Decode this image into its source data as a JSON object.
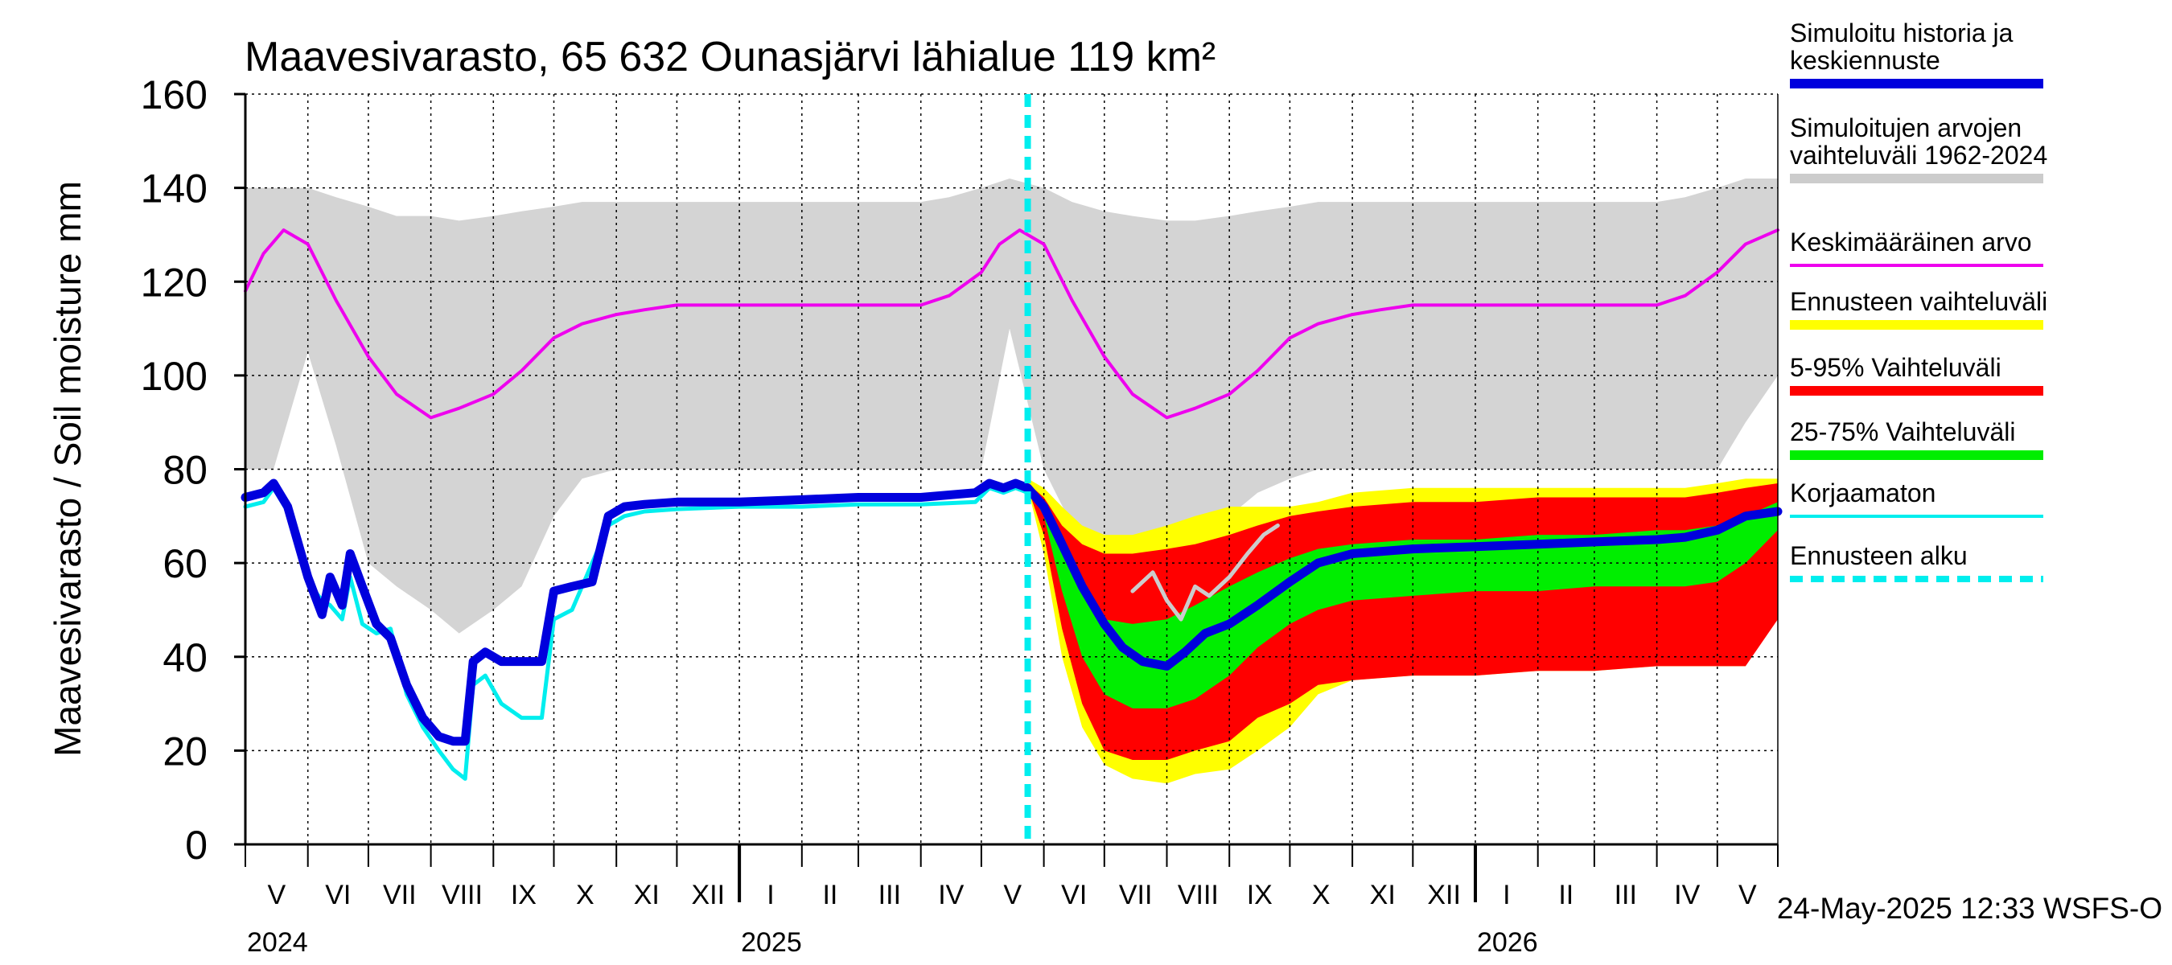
{
  "chart_data": {
    "type": "area",
    "title": "Maavesivarasto, 65 632 Ounasjärvi lähialue 119 km²",
    "ylabel": "Maavesivarasto / Soil moisture   mm",
    "xlabel": "",
    "ylim": [
      0,
      160
    ],
    "y_ticks": [
      0,
      20,
      40,
      60,
      80,
      100,
      120,
      140,
      160
    ],
    "x_range": [
      "2024-05-01",
      "2026-05-31"
    ],
    "grid": true,
    "legend_position": "right",
    "month_labels": [
      "V",
      "VI",
      "VII",
      "VIII",
      "IX",
      "X",
      "XI",
      "XII",
      "I",
      "II",
      "III",
      "IV",
      "V",
      "VI",
      "VII",
      "VIII",
      "IX",
      "X",
      "XI",
      "XII",
      "I",
      "II",
      "III",
      "IV",
      "V"
    ],
    "month_starts": [
      "2024-05-01",
      "2024-06-01",
      "2024-07-01",
      "2024-08-01",
      "2024-09-01",
      "2024-10-01",
      "2024-11-01",
      "2024-12-01",
      "2025-01-01",
      "2025-02-01",
      "2025-03-01",
      "2025-04-01",
      "2025-05-01",
      "2025-06-01",
      "2025-07-01",
      "2025-08-01",
      "2025-09-01",
      "2025-10-01",
      "2025-11-01",
      "2025-12-01",
      "2026-01-01",
      "2026-02-01",
      "2026-03-01",
      "2026-04-01",
      "2026-05-01"
    ],
    "year_labels": [
      {
        "label": "2024",
        "date": "2024-05-01"
      },
      {
        "label": "2025",
        "date": "2025-01-01"
      },
      {
        "label": "2026",
        "date": "2026-01-01"
      }
    ],
    "forecast_start": "2025-05-24",
    "timestamp": "24-May-2025 12:33 WSFS-O",
    "legend": [
      {
        "label": "Simuloitu historia ja\nkeskiennuste",
        "color": "#0000dd",
        "style": "thick"
      },
      {
        "label": "Simuloitujen arvojen\nvaihteluväli 1962-2024",
        "color": "#cccccc",
        "style": "thick"
      },
      {
        "label": "Keskimääräinen arvo",
        "color": "#ee00ee",
        "style": "thin"
      },
      {
        "label": "Ennusteen vaihteluväli",
        "color": "#ffff00",
        "style": "thick"
      },
      {
        "label": "5-95% Vaihteluväli",
        "color": "#ff0000",
        "style": "thick"
      },
      {
        "label": "25-75% Vaihteluväli",
        "color": "#00ee00",
        "style": "thick"
      },
      {
        "label": "Korjaamaton",
        "color": "#00eeee",
        "style": "thin"
      },
      {
        "label": "Ennusteen alku",
        "color": "#00eeee",
        "style": "dashed"
      }
    ],
    "series": {
      "hist_range": {
        "name": "Simuloitujen arvojen vaihteluväli 1962-2024",
        "x": [
          "2024-05-01",
          "2024-05-15",
          "2024-06-01",
          "2024-06-15",
          "2024-07-01",
          "2024-07-15",
          "2024-08-01",
          "2024-08-15",
          "2024-09-01",
          "2024-09-15",
          "2024-10-01",
          "2024-10-15",
          "2024-11-01",
          "2024-12-01",
          "2025-01-01",
          "2025-02-01",
          "2025-03-01",
          "2025-04-01",
          "2025-04-15",
          "2025-05-01",
          "2025-05-15",
          "2025-06-01",
          "2025-06-15",
          "2025-07-01",
          "2025-07-15",
          "2025-08-01",
          "2025-08-15",
          "2025-09-01",
          "2025-09-15",
          "2025-10-01",
          "2025-10-15",
          "2025-11-01",
          "2025-12-01",
          "2026-01-01",
          "2026-02-01",
          "2026-03-01",
          "2026-04-01",
          "2026-04-15",
          "2026-05-01",
          "2026-05-15",
          "2026-05-31"
        ],
        "low": [
          80,
          80,
          105,
          85,
          60,
          55,
          50,
          45,
          50,
          55,
          70,
          78,
          80,
          80,
          80,
          80,
          80,
          80,
          80,
          80,
          110,
          80,
          68,
          62,
          60,
          60,
          65,
          70,
          75,
          78,
          80,
          80,
          80,
          80,
          80,
          80,
          80,
          80,
          80,
          90,
          100
        ],
        "high": [
          140,
          140,
          140,
          138,
          136,
          134,
          134,
          133,
          134,
          135,
          136,
          137,
          137,
          137,
          137,
          137,
          137,
          137,
          138,
          140,
          142,
          140,
          137,
          135,
          134,
          133,
          133,
          134,
          135,
          136,
          137,
          137,
          137,
          137,
          137,
          137,
          137,
          138,
          140,
          142,
          142
        ]
      },
      "mean": {
        "name": "Keskimääräinen arvo",
        "x": [
          "2024-05-01",
          "2024-05-10",
          "2024-05-20",
          "2024-06-01",
          "2024-06-15",
          "2024-07-01",
          "2024-07-15",
          "2024-08-01",
          "2024-08-15",
          "2024-09-01",
          "2024-09-15",
          "2024-10-01",
          "2024-10-15",
          "2024-11-01",
          "2024-11-15",
          "2024-12-01",
          "2025-01-01",
          "2025-02-01",
          "2025-03-01",
          "2025-04-01",
          "2025-04-15",
          "2025-05-01",
          "2025-05-10",
          "2025-05-20",
          "2025-06-01",
          "2025-06-15",
          "2025-07-01",
          "2025-07-15",
          "2025-08-01",
          "2025-08-15",
          "2025-09-01",
          "2025-09-15",
          "2025-10-01",
          "2025-10-15",
          "2025-11-01",
          "2025-11-15",
          "2025-12-01",
          "2026-01-01",
          "2026-02-01",
          "2026-03-01",
          "2026-04-01",
          "2026-04-15",
          "2026-05-01",
          "2026-05-15",
          "2026-05-31"
        ],
        "values": [
          118,
          126,
          131,
          128,
          116,
          104,
          96,
          91,
          93,
          96,
          101,
          108,
          111,
          113,
          114,
          115,
          115,
          115,
          115,
          115,
          117,
          122,
          128,
          131,
          128,
          116,
          104,
          96,
          91,
          93,
          96,
          101,
          108,
          111,
          113,
          114,
          115,
          115,
          115,
          115,
          115,
          117,
          122,
          128,
          131
        ]
      },
      "forecast_outer": {
        "name": "Ennusteen vaihteluväli",
        "x": [
          "2025-05-24",
          "2025-06-01",
          "2025-06-10",
          "2025-06-20",
          "2025-07-01",
          "2025-07-15",
          "2025-08-01",
          "2025-08-15",
          "2025-09-01",
          "2025-09-15",
          "2025-10-01",
          "2025-10-15",
          "2025-11-01",
          "2025-12-01",
          "2026-01-01",
          "2026-02-01",
          "2026-03-01",
          "2026-04-01",
          "2026-04-15",
          "2026-05-01",
          "2026-05-15",
          "2026-05-31"
        ],
        "low": [
          76,
          62,
          40,
          25,
          17,
          14,
          13,
          15,
          16,
          20,
          25,
          32,
          35,
          36,
          36,
          37,
          37,
          38,
          38,
          38,
          38,
          55
        ],
        "high": [
          78,
          76,
          72,
          68,
          66,
          66,
          68,
          70,
          72,
          72,
          72,
          73,
          75,
          76,
          76,
          76,
          76,
          76,
          76,
          77,
          78,
          78
        ]
      },
      "forecast_5_95": {
        "name": "5-95% Vaihteluväli",
        "x": [
          "2025-05-24",
          "2025-06-01",
          "2025-06-10",
          "2025-06-20",
          "2025-07-01",
          "2025-07-15",
          "2025-08-01",
          "2025-08-15",
          "2025-09-01",
          "2025-09-15",
          "2025-10-01",
          "2025-10-15",
          "2025-11-01",
          "2025-12-01",
          "2026-01-01",
          "2026-02-01",
          "2026-03-01",
          "2026-04-01",
          "2026-04-15",
          "2026-05-01",
          "2026-05-15",
          "2026-05-31"
        ],
        "low": [
          76,
          66,
          46,
          30,
          20,
          18,
          18,
          20,
          22,
          27,
          30,
          34,
          35,
          36,
          36,
          37,
          37,
          38,
          38,
          38,
          38,
          48
        ],
        "high": [
          77,
          74,
          68,
          64,
          62,
          62,
          63,
          64,
          66,
          68,
          70,
          71,
          72,
          73,
          73,
          74,
          74,
          74,
          74,
          75,
          76,
          77
        ]
      },
      "forecast_25_75": {
        "name": "25-75% Vaihteluväli",
        "x": [
          "2025-05-24",
          "2025-06-01",
          "2025-06-10",
          "2025-06-20",
          "2025-07-01",
          "2025-07-15",
          "2025-08-01",
          "2025-08-15",
          "2025-09-01",
          "2025-09-15",
          "2025-10-01",
          "2025-10-15",
          "2025-11-01",
          "2025-12-01",
          "2026-01-01",
          "2026-02-01",
          "2026-03-01",
          "2026-04-01",
          "2026-04-15",
          "2026-05-01",
          "2026-05-15",
          "2026-05-31"
        ],
        "low": [
          76,
          70,
          54,
          40,
          32,
          29,
          29,
          31,
          36,
          42,
          47,
          50,
          52,
          53,
          54,
          54,
          55,
          55,
          55,
          56,
          60,
          67
        ],
        "high": [
          77,
          72,
          62,
          54,
          48,
          47,
          48,
          51,
          55,
          58,
          61,
          63,
          64,
          65,
          65,
          66,
          66,
          67,
          67,
          68,
          70,
          73
        ]
      },
      "simulated": {
        "name": "Simuloitu historia ja keskiennuste",
        "x": [
          "2024-05-01",
          "2024-05-10",
          "2024-05-15",
          "2024-05-22",
          "2024-06-01",
          "2024-06-08",
          "2024-06-12",
          "2024-06-18",
          "2024-06-22",
          "2024-06-28",
          "2024-07-05",
          "2024-07-12",
          "2024-07-20",
          "2024-07-28",
          "2024-08-05",
          "2024-08-12",
          "2024-08-18",
          "2024-08-22",
          "2024-08-28",
          "2024-09-05",
          "2024-09-15",
          "2024-09-25",
          "2024-10-01",
          "2024-10-10",
          "2024-10-20",
          "2024-10-28",
          "2024-11-05",
          "2024-11-15",
          "2024-12-01",
          "2025-01-01",
          "2025-02-01",
          "2025-03-01",
          "2025-04-01",
          "2025-04-28",
          "2025-05-05",
          "2025-05-12",
          "2025-05-18",
          "2025-05-24",
          "2025-06-01",
          "2025-06-10",
          "2025-06-20",
          "2025-07-01",
          "2025-07-10",
          "2025-07-20",
          "2025-08-01",
          "2025-08-10",
          "2025-08-20",
          "2025-09-01",
          "2025-09-15",
          "2025-10-01",
          "2025-10-15",
          "2025-11-01",
          "2025-12-01",
          "2026-01-01",
          "2026-02-01",
          "2026-03-01",
          "2026-04-01",
          "2026-04-15",
          "2026-05-01",
          "2026-05-15",
          "2026-05-31"
        ],
        "values": [
          74,
          75,
          77,
          72,
          57,
          49,
          57,
          51,
          62,
          55,
          47,
          44,
          34,
          27,
          23,
          22,
          22,
          39,
          41,
          39,
          39,
          39,
          54,
          55,
          56,
          70,
          72,
          72.5,
          73,
          73,
          73.5,
          74,
          74,
          75,
          77,
          76,
          77,
          76,
          72,
          64,
          55,
          47,
          42,
          39,
          38,
          41,
          45,
          47,
          51,
          56,
          60,
          62,
          63,
          63.5,
          64,
          64.5,
          65,
          65.5,
          67,
          70,
          71
        ]
      },
      "uncorrected": {
        "name": "Korjaamaton",
        "x": [
          "2024-05-01",
          "2024-05-10",
          "2024-05-15",
          "2024-05-22",
          "2024-06-01",
          "2024-06-08",
          "2024-06-12",
          "2024-06-18",
          "2024-06-22",
          "2024-06-28",
          "2024-07-05",
          "2024-07-12",
          "2024-07-20",
          "2024-07-28",
          "2024-08-05",
          "2024-08-12",
          "2024-08-18",
          "2024-08-22",
          "2024-08-28",
          "2024-09-05",
          "2024-09-15",
          "2024-09-25",
          "2024-10-01",
          "2024-10-10",
          "2024-10-20",
          "2024-10-28",
          "2024-11-05",
          "2024-11-15",
          "2024-12-01",
          "2025-01-01",
          "2025-02-01",
          "2025-03-01",
          "2025-04-01",
          "2025-04-28",
          "2025-05-05",
          "2025-05-12",
          "2025-05-18",
          "2025-05-24"
        ],
        "values": [
          72,
          73,
          76,
          71,
          56,
          52,
          51,
          48,
          57,
          47,
          45,
          46,
          32,
          25,
          20,
          16,
          14,
          34,
          36,
          30,
          27,
          27,
          48,
          50,
          60,
          68,
          70,
          71,
          71.5,
          72,
          72,
          72.5,
          72.5,
          73,
          76,
          75,
          76,
          75
        ]
      },
      "gray_trace": {
        "name": "",
        "x": [
          "2025-07-15",
          "2025-07-25",
          "2025-08-01",
          "2025-08-08",
          "2025-08-15",
          "2025-08-22",
          "2025-09-01",
          "2025-09-10",
          "2025-09-18",
          "2025-09-25"
        ],
        "values": [
          54,
          58,
          52,
          48,
          55,
          53,
          57,
          62,
          66,
          68
        ]
      }
    }
  }
}
